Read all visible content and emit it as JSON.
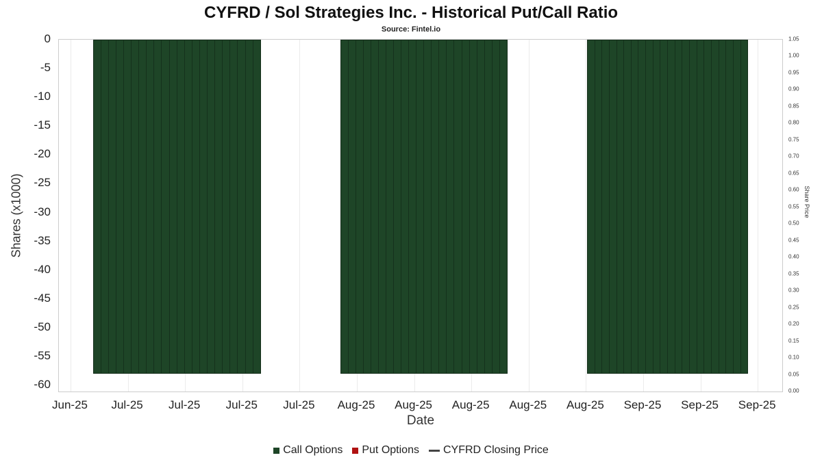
{
  "chart_data": {
    "type": "bar",
    "title": "CYFRD / Sol Strategies Inc. - Historical Put/Call Ratio",
    "subtitle": "Source: Fintel.io",
    "xlabel": "Date",
    "ylabel_left": "Shares (x1000)",
    "ylabel_right": "Share Price",
    "ylim_left": [
      -60,
      0
    ],
    "ylim_right": [
      0,
      1.05
    ],
    "grid": true,
    "legend_position": "bottom",
    "y_ticks_left": [
      "0",
      "-5",
      "-10",
      "-15",
      "-20",
      "-25",
      "-30",
      "-35",
      "-40",
      "-45",
      "-50",
      "-55",
      "-60"
    ],
    "y_ticks_right": [
      "1.05",
      "1.00",
      "0.95",
      "0.90",
      "0.85",
      "0.80",
      "0.75",
      "0.70",
      "0.65",
      "0.60",
      "0.55",
      "0.50",
      "0.45",
      "0.40",
      "0.35",
      "0.30",
      "0.25",
      "0.20",
      "0.15",
      "0.10",
      "0.05",
      "0.00"
    ],
    "x_tick_labels": [
      "Jun-25",
      "Jul-25",
      "Jul-25",
      "Jul-25",
      "Jul-25",
      "Aug-25",
      "Aug-25",
      "Aug-25",
      "Aug-25",
      "Aug-25",
      "Sep-25",
      "Sep-25",
      "Sep-25"
    ],
    "series": [
      {
        "name": "Call Options",
        "type": "bar",
        "color": "#1e4527",
        "bar_groups": [
          {
            "period_start_label": "Jun-25",
            "period_end_label": "Jul-25",
            "x_start_frac": 0.047,
            "x_end_frac": 0.279,
            "bar_count": 22,
            "value_x1000": -58
          },
          {
            "period_start_label": "Aug-25",
            "period_end_label": "Aug-25",
            "x_start_frac": 0.389,
            "x_end_frac": 0.62,
            "bar_count": 22,
            "value_x1000": -58
          },
          {
            "period_start_label": "Aug-25",
            "period_end_label": "Sep-25",
            "x_start_frac": 0.73,
            "x_end_frac": 0.953,
            "bar_count": 22,
            "value_x1000": -58
          }
        ]
      },
      {
        "name": "Put Options",
        "type": "bar",
        "color": "#b01212",
        "bar_groups": []
      },
      {
        "name": "CYFRD Closing Price",
        "type": "line",
        "color": "#444444",
        "points": []
      }
    ]
  }
}
